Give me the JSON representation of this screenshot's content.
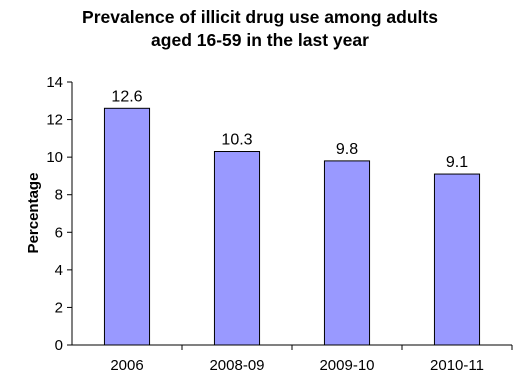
{
  "chart_data": {
    "type": "bar",
    "title_line1": "Prevalence of illicit drug use among adults",
    "title_line2": "aged 16-59 in the last year",
    "xlabel": "",
    "ylabel": "Percentage",
    "categories": [
      "2006",
      "2008-09",
      "2009-10",
      "2010-11"
    ],
    "values": [
      12.6,
      10.3,
      9.8,
      9.1
    ],
    "value_labels": [
      "12.6",
      "10.3",
      "9.8",
      "9.1"
    ],
    "ylim": [
      0,
      14
    ],
    "yticks": [
      0,
      2,
      4,
      6,
      8,
      10,
      12,
      14
    ],
    "grid": false,
    "legend": "none",
    "colors": {
      "bar_fill": "#9999ff",
      "bar_stroke": "#000000",
      "axis": "#000000"
    }
  }
}
